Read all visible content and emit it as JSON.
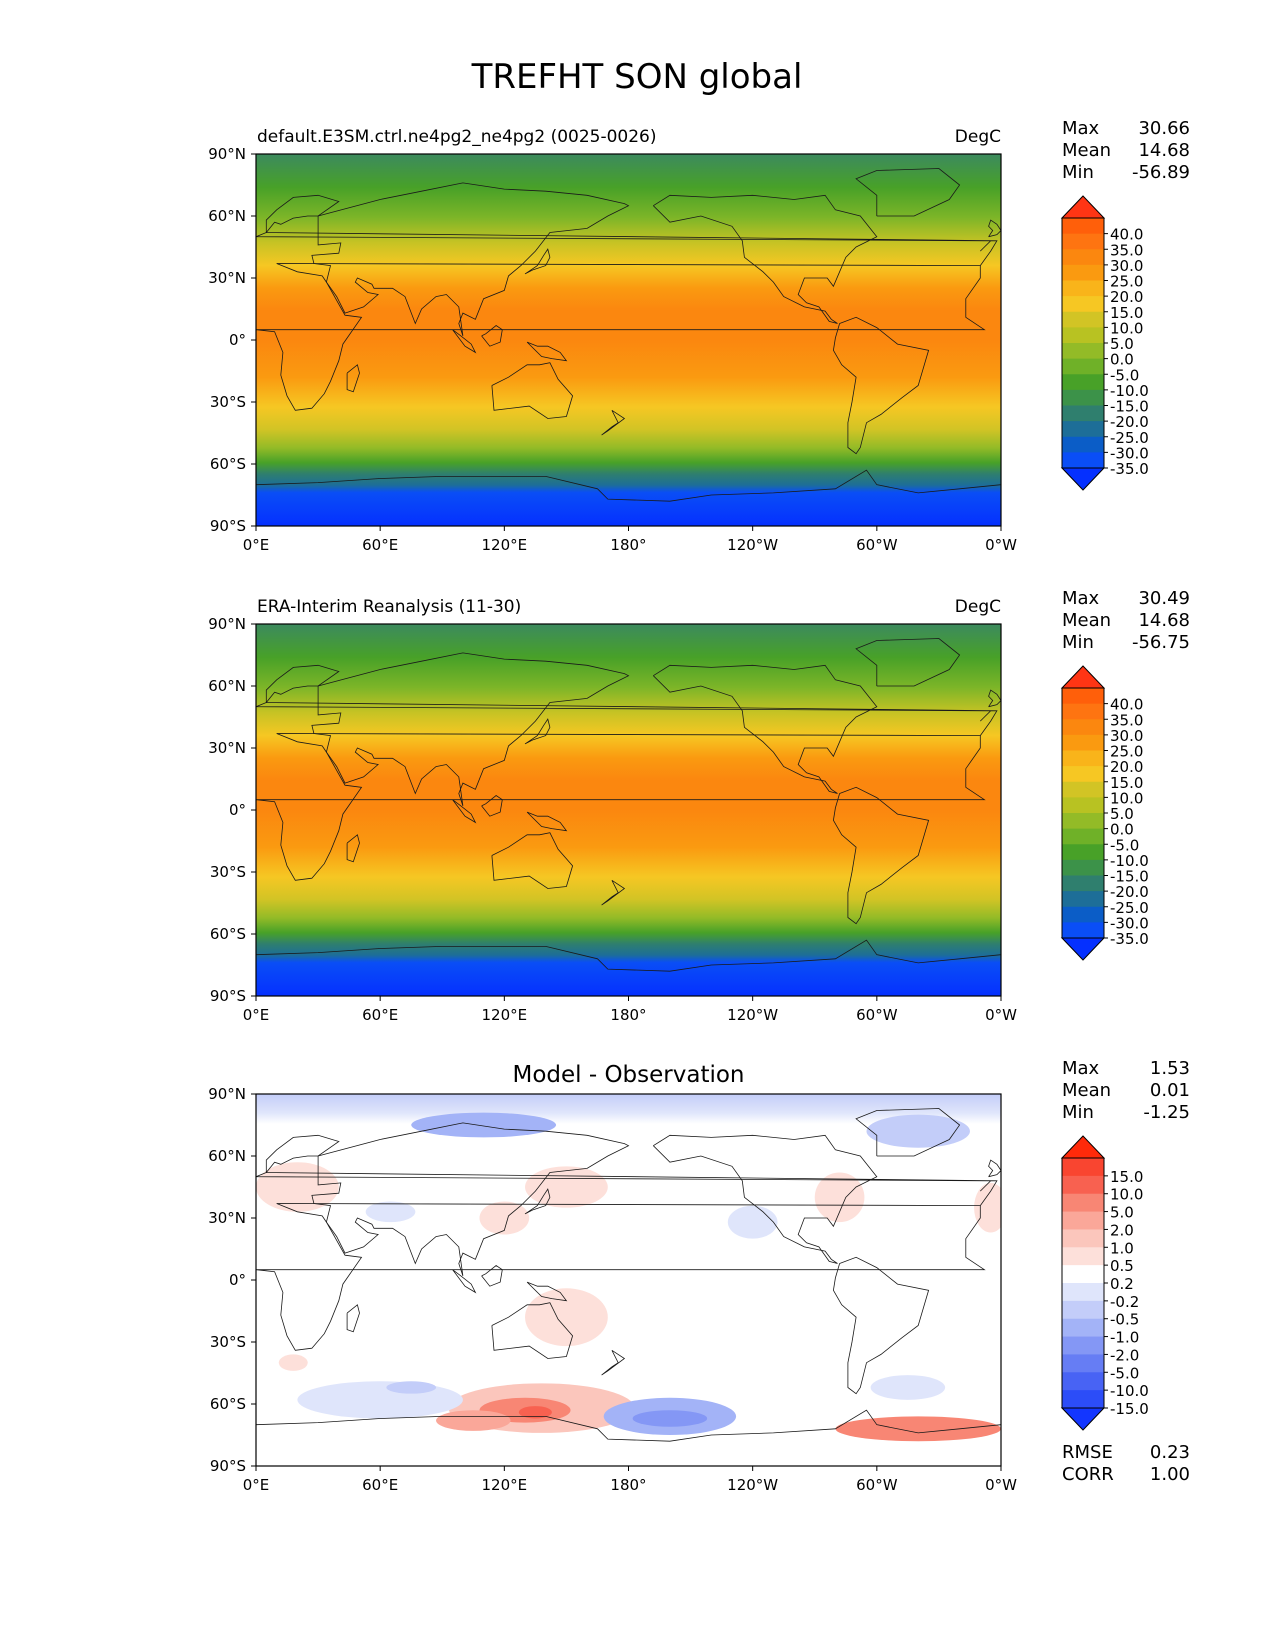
{
  "figure": {
    "title": "TREFHT SON global"
  },
  "axes": {
    "lat_ticks": [
      "90°N",
      "60°N",
      "30°N",
      "0°",
      "30°S",
      "60°S",
      "90°S"
    ],
    "lon_ticks": [
      "0°E",
      "60°E",
      "120°E",
      "180°",
      "120°W",
      "60°W",
      "0°W"
    ]
  },
  "panels": [
    {
      "id": "model",
      "title_left": "default.E3SM.ctrl.ne4pg2_ne4pg2 (0025-0026)",
      "title_center": "",
      "units": "DegC",
      "stats": [
        {
          "label": "Max",
          "value": "30.66"
        },
        {
          "label": "Mean",
          "value": "14.68"
        },
        {
          "label": "Min",
          "value": "-56.89"
        }
      ],
      "colorbar": {
        "labels": [
          "40.0",
          "35.0",
          "30.0",
          "25.0",
          "20.0",
          "15.0",
          "10.0",
          "5.0",
          "0.0",
          "-5.0",
          "-10.0",
          "-15.0",
          "-20.0",
          "-25.0",
          "-30.0",
          "-35.0"
        ],
        "colors": [
          "#ff3514",
          "#ff5f0a",
          "#fe7411",
          "#fb870f",
          "#fa9a10",
          "#f9b41a",
          "#f6c723",
          "#d2c425",
          "#b8c222",
          "#93bb27",
          "#6fb128",
          "#48a128",
          "#3c9249",
          "#2f7f6e",
          "#1d6e98",
          "#0b5dc7",
          "#0a4ef6",
          "#0530ff"
        ]
      }
    },
    {
      "id": "obs",
      "title_left": "ERA-Interim Reanalysis (11-30)",
      "title_center": "",
      "units": "DegC",
      "stats": [
        {
          "label": "Max",
          "value": "30.49"
        },
        {
          "label": "Mean",
          "value": "14.68"
        },
        {
          "label": "Min",
          "value": "-56.75"
        }
      ],
      "colorbar": {
        "labels": [
          "40.0",
          "35.0",
          "30.0",
          "25.0",
          "20.0",
          "15.0",
          "10.0",
          "5.0",
          "0.0",
          "-5.0",
          "-10.0",
          "-15.0",
          "-20.0",
          "-25.0",
          "-30.0",
          "-35.0"
        ],
        "colors": [
          "#ff3514",
          "#ff5f0a",
          "#fe7411",
          "#fb870f",
          "#fa9a10",
          "#f9b41a",
          "#f6c723",
          "#d2c425",
          "#b8c222",
          "#93bb27",
          "#6fb128",
          "#48a128",
          "#3c9249",
          "#2f7f6e",
          "#1d6e98",
          "#0b5dc7",
          "#0a4ef6",
          "#0530ff"
        ]
      }
    },
    {
      "id": "diff",
      "title_left": "",
      "title_center": "Model - Observation",
      "units": "",
      "stats": [
        {
          "label": "Max",
          "value": "1.53"
        },
        {
          "label": "Mean",
          "value": "0.01"
        },
        {
          "label": "Min",
          "value": "-1.25"
        }
      ],
      "extra_stats": [
        {
          "label": "RMSE",
          "value": "0.23"
        },
        {
          "label": "CORR",
          "value": "1.00"
        }
      ],
      "colorbar": {
        "labels": [
          "15.0",
          "10.0",
          "5.0",
          "2.0",
          "1.0",
          "0.5",
          "0.2",
          "-0.2",
          "-0.5",
          "-1.0",
          "-2.0",
          "-5.0",
          "-10.0",
          "-15.0"
        ],
        "colors": [
          "#ff2a0a",
          "#f94530",
          "#f86150",
          "#f88674",
          "#faa799",
          "#fbc6bc",
          "#fde0da",
          "#ffffff",
          "#dfe5fb",
          "#c3cdf9",
          "#a3b3f7",
          "#8497f5",
          "#667df4",
          "#4863f4",
          "#2c4df8",
          "#1336ff"
        ]
      }
    }
  ]
}
